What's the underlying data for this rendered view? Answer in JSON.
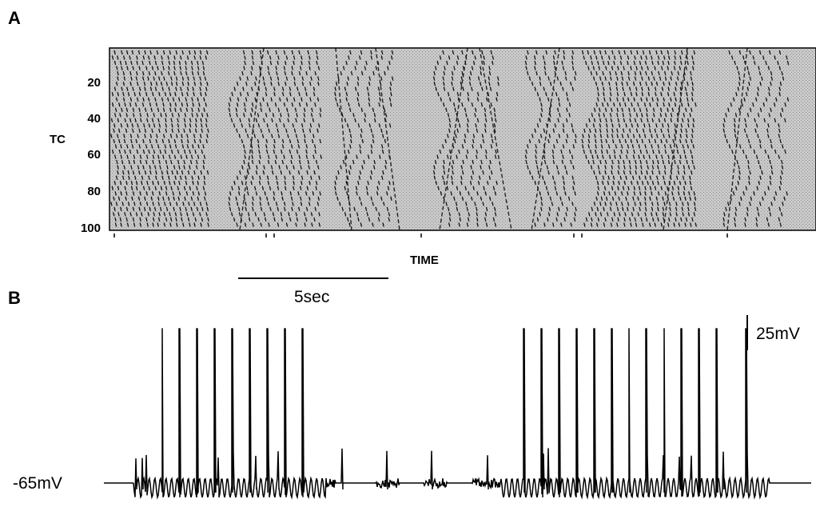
{
  "chart_data": [
    {
      "type": "heatmap",
      "panel": "A",
      "ylabel": "TC",
      "xlabel": "TIME",
      "yticks": [
        20,
        40,
        60,
        80,
        100
      ],
      "ylim": [
        1,
        100
      ],
      "description_values": {
        "rows": 100,
        "wave_bursts": [
          {
            "start": 0.0,
            "end": 0.14,
            "density": 1.0
          },
          {
            "start": 0.18,
            "end": 0.3,
            "density": 0.7
          },
          {
            "start": 0.33,
            "end": 0.4,
            "density": 0.5
          },
          {
            "start": 0.47,
            "end": 0.55,
            "density": 0.6
          },
          {
            "start": 0.6,
            "end": 0.66,
            "density": 0.6
          },
          {
            "start": 0.68,
            "end": 0.83,
            "density": 1.0
          },
          {
            "start": 0.88,
            "end": 0.96,
            "density": 0.5
          }
        ]
      }
    },
    {
      "type": "line",
      "panel": "B",
      "baseline_label": "-65mV",
      "voltage_scale_label": "25mV",
      "time_scale_label": "5sec",
      "baseline_mV": -65,
      "burst_spike_times": {
        "burst1": [
          0.1,
          0.13,
          0.16,
          0.19,
          0.22,
          0.25,
          0.28,
          0.31,
          0.34
        ],
        "burst2": [
          0.72,
          0.75,
          0.78,
          0.81,
          0.84,
          0.87,
          0.9,
          0.93,
          0.96,
          0.99,
          1.02,
          1.05,
          1.1
        ]
      },
      "spike_peak_mV": 45
    }
  ],
  "labels": {
    "panel_a": "A",
    "panel_b": "B",
    "a_ylabel": "TC",
    "a_xlabel": "TIME",
    "a_ticks": [
      "20",
      "40",
      "60",
      "80",
      "100"
    ],
    "b_baseline": "-65mV",
    "b_vscale": "25mV",
    "b_tscale": "5sec"
  }
}
